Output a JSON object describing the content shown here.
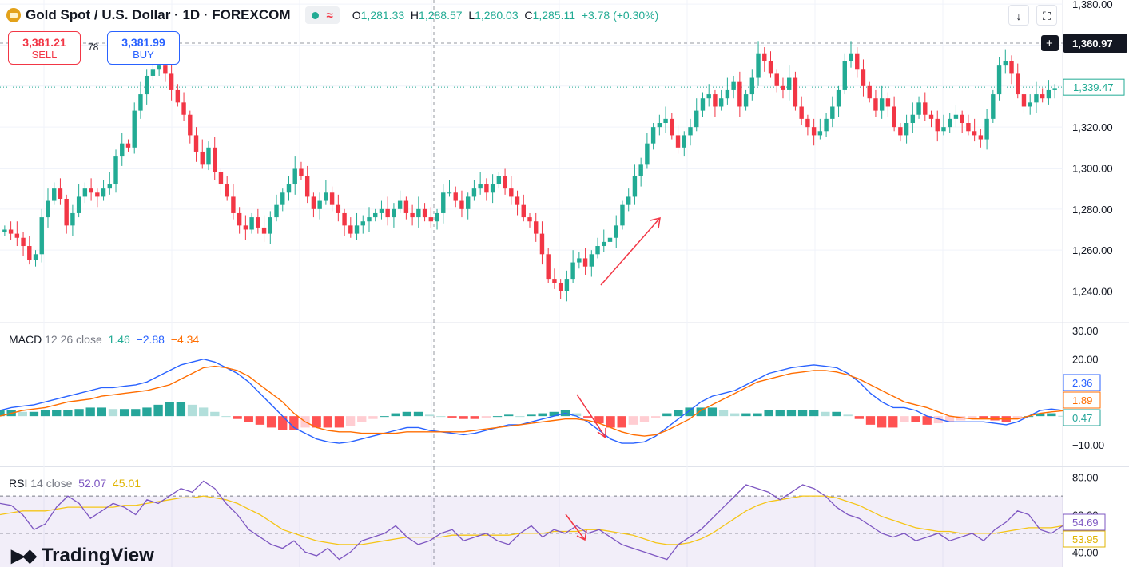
{
  "header": {
    "title": "Gold Spot / U.S. Dollar · 1D · FOREXCOM",
    "ohlc": {
      "o_label": "O",
      "o": "1,281.33",
      "h_label": "H",
      "h": "1,288.57",
      "l_label": "L",
      "l": "1,280.03",
      "c_label": "C",
      "c": "1,285.11",
      "change": "+3.78 (+0.30%)"
    }
  },
  "trade": {
    "sell_price": "3,381.21",
    "sell_label": "SELL",
    "spread": "78",
    "buy_price": "3,381.99",
    "buy_label": "BUY"
  },
  "toolbar": {
    "download_icon": "download-icon",
    "fullscreen_icon": "fullscreen-icon"
  },
  "indicators": {
    "macd": {
      "name": "MACD",
      "params": "12 26 close",
      "v1": "1.46",
      "v2": "−2.88",
      "v3": "−4.34"
    },
    "rsi": {
      "name": "RSI",
      "params": "14 close",
      "v1": "52.07",
      "v2": "45.01"
    }
  },
  "branding": {
    "logo_text": "TradingView"
  },
  "colors": {
    "up": "#22ab94",
    "down": "#f23645",
    "macd": "#2962ff",
    "signal": "#ff6d00",
    "rsi": "#7e57c2",
    "rsi_ma": "#f5c518",
    "annotation": "#f23645"
  },
  "chart_data": [
    {
      "type": "candlestick",
      "y_ticks": [
        "1,380.00",
        "1,360.00",
        "1,340.00",
        "1,320.00",
        "1,300.00",
        "1,280.00",
        "1,260.00",
        "1,240.00"
      ],
      "ylim": [
        1225,
        1382
      ],
      "crosshair_price": "1,360.97",
      "last_price": "1,339.47",
      "closes": [
        1270,
        1268,
        1266,
        1262,
        1255,
        1258,
        1276,
        1284,
        1290,
        1285,
        1272,
        1278,
        1286,
        1290,
        1288,
        1286,
        1290,
        1292,
        1306,
        1312,
        1310,
        1328,
        1336,
        1345,
        1348,
        1350,
        1346,
        1338,
        1332,
        1326,
        1316,
        1308,
        1302,
        1310,
        1298,
        1292,
        1286,
        1278,
        1272,
        1270,
        1276,
        1271,
        1268,
        1276,
        1282,
        1288,
        1292,
        1300,
        1296,
        1286,
        1280,
        1284,
        1288,
        1282,
        1278,
        1272,
        1268,
        1272,
        1274,
        1276,
        1278,
        1280,
        1276,
        1280,
        1284,
        1278,
        1276,
        1280,
        1276,
        1274,
        1278,
        1288,
        1288,
        1284,
        1280,
        1286,
        1290,
        1292,
        1288,
        1292,
        1296,
        1290,
        1286,
        1282,
        1276,
        1274,
        1268,
        1258,
        1246,
        1244,
        1240,
        1246,
        1254,
        1256,
        1252,
        1258,
        1262,
        1264,
        1266,
        1272,
        1282,
        1286,
        1296,
        1302,
        1312,
        1320,
        1322,
        1324,
        1316,
        1310,
        1316,
        1320,
        1328,
        1334,
        1336,
        1330,
        1334,
        1338,
        1342,
        1330,
        1336,
        1344,
        1356,
        1352,
        1346,
        1340,
        1338,
        1344,
        1330,
        1324,
        1320,
        1316,
        1318,
        1324,
        1330,
        1338,
        1352,
        1356,
        1348,
        1340,
        1334,
        1328,
        1334,
        1330,
        1320,
        1316,
        1322,
        1326,
        1332,
        1326,
        1324,
        1318,
        1320,
        1324,
        1326,
        1322,
        1318,
        1316,
        1314,
        1324,
        1336,
        1350,
        1352,
        1346,
        1336,
        1330,
        1332,
        1336,
        1334,
        1338,
        1339
      ]
    },
    {
      "type": "macd",
      "y_ticks": [
        "30.00",
        "20.00",
        "−10.00"
      ],
      "ylim": [
        -12,
        30
      ],
      "macd_value": "2.36",
      "signal_value": "1.89",
      "hist_value": "0.47",
      "macd": [
        2,
        3,
        3.5,
        4,
        5,
        6,
        7,
        8,
        9,
        10,
        10,
        10.5,
        11,
        12,
        14,
        16,
        18,
        19,
        20,
        19,
        17,
        15,
        12,
        8,
        4,
        0,
        -4,
        -6,
        -8,
        -9,
        -9.5,
        -9,
        -8,
        -7,
        -6,
        -5,
        -4,
        -4,
        -5,
        -5.5,
        -6,
        -6.5,
        -6,
        -5,
        -4,
        -3,
        -3,
        -2,
        -1,
        0,
        1,
        0,
        -2,
        -5,
        -8,
        -9.5,
        -9.5,
        -9,
        -7,
        -4,
        -1,
        2,
        5,
        7,
        8,
        9,
        11,
        13,
        15,
        16,
        17,
        17.5,
        18,
        17.5,
        17,
        15,
        12,
        8,
        5,
        3,
        3,
        2,
        0,
        -1,
        -2,
        -2,
        -2,
        -2,
        -2.5,
        -3,
        -2,
        0,
        2,
        2.5,
        2
      ],
      "signal": [
        0,
        1,
        2,
        2.5,
        3,
        4,
        5,
        5.5,
        6,
        7,
        7.5,
        8,
        8.5,
        9,
        10,
        11,
        13,
        15,
        17,
        17.5,
        17,
        16,
        14,
        11,
        8,
        5,
        1,
        -2,
        -4,
        -5,
        -5.5,
        -5.5,
        -6,
        -6,
        -6,
        -6,
        -5.5,
        -5.5,
        -5.5,
        -5.5,
        -5.5,
        -5.5,
        -5,
        -4.5,
        -4,
        -3.5,
        -3,
        -2.5,
        -2,
        -1.5,
        -1,
        -1,
        -1.5,
        -2.5,
        -4,
        -5.5,
        -6.5,
        -7,
        -6.5,
        -5,
        -3,
        -1,
        2,
        4,
        6,
        8,
        10,
        12,
        13,
        14,
        15,
        15.5,
        16,
        16,
        15.5,
        14.5,
        13,
        11,
        9,
        7,
        5,
        4,
        3,
        1.5,
        0,
        -0.5,
        -1,
        -1,
        -1,
        -1,
        -1,
        0,
        1,
        1.5,
        1.9
      ]
    },
    {
      "type": "rsi",
      "y_ticks": [
        "80.00",
        "60.00",
        "40.00"
      ],
      "ylim": [
        32,
        82
      ],
      "rsi_value": "54.69",
      "rsi_ma_value": "53.95",
      "rsi": [
        66,
        65,
        60,
        52,
        55,
        64,
        70,
        66,
        58,
        62,
        66,
        64,
        60,
        68,
        66,
        70,
        74,
        72,
        78,
        74,
        66,
        60,
        52,
        48,
        44,
        42,
        46,
        40,
        38,
        42,
        36,
        40,
        46,
        48,
        50,
        54,
        48,
        44,
        46,
        50,
        52,
        46,
        48,
        50,
        46,
        44,
        50,
        54,
        48,
        52,
        50,
        54,
        50,
        52,
        48,
        44,
        42,
        40,
        38,
        36,
        44,
        48,
        52,
        58,
        64,
        70,
        76,
        74,
        72,
        68,
        72,
        76,
        74,
        70,
        64,
        60,
        58,
        54,
        50,
        48,
        50,
        46,
        48,
        50,
        46,
        48,
        50,
        46,
        52,
        56,
        62,
        60,
        52,
        50,
        54
      ],
      "rsi_ma": [
        60,
        61,
        62,
        62,
        62,
        63,
        64,
        64,
        64,
        64,
        64,
        65,
        65,
        66,
        67,
        68,
        69,
        69,
        70,
        69,
        68,
        66,
        63,
        60,
        56,
        52,
        50,
        48,
        46,
        45,
        44,
        44,
        44,
        45,
        46,
        47,
        48,
        48,
        48,
        48,
        49,
        49,
        49,
        49,
        49,
        49,
        50,
        50,
        50,
        51,
        51,
        51,
        52,
        52,
        51,
        50,
        49,
        47,
        45,
        44,
        44,
        45,
        47,
        50,
        54,
        58,
        62,
        65,
        67,
        68,
        69,
        70,
        70,
        70,
        69,
        67,
        65,
        62,
        59,
        57,
        55,
        53,
        52,
        51,
        51,
        50,
        50,
        50,
        50,
        51,
        52,
        53,
        53,
        53,
        54
      ]
    }
  ]
}
